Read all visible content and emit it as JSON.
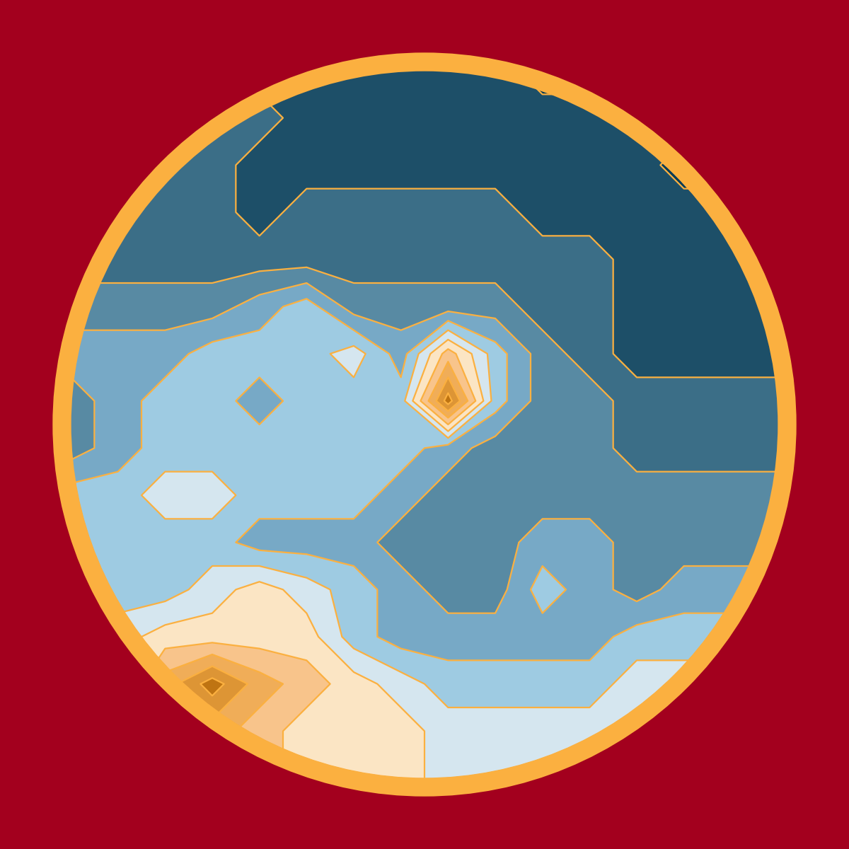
{
  "chart_data": {
    "type": "contour",
    "x": [
      0,
      1,
      2,
      3,
      4,
      5,
      6,
      7,
      8,
      9,
      10,
      11,
      12,
      13,
      14,
      15
    ],
    "y": [
      0,
      1,
      2,
      3,
      4,
      5,
      6,
      7,
      8,
      9,
      10,
      11,
      12,
      13,
      14,
      15
    ],
    "z": [
      [
        1,
        1,
        1,
        1,
        1,
        1,
        1,
        1,
        1,
        1,
        0,
        0,
        1,
        1,
        1,
        1
      ],
      [
        2,
        2,
        2,
        2,
        2,
        1,
        1,
        1,
        1,
        1,
        1,
        1,
        1,
        1,
        1,
        1
      ],
      [
        2,
        2,
        2,
        2,
        1,
        1,
        1,
        1,
        1,
        1,
        1,
        1,
        1,
        0,
        0,
        0
      ],
      [
        2,
        2,
        2,
        2,
        1,
        2,
        2,
        2,
        2,
        2,
        1,
        1,
        1,
        1,
        1,
        1
      ],
      [
        2,
        2,
        2,
        2,
        2,
        2,
        2,
        2,
        2,
        2,
        2,
        2,
        1,
        1,
        1,
        1
      ],
      [
        3,
        3,
        3,
        3,
        4,
        5,
        3,
        3,
        3,
        3,
        2,
        2,
        1,
        1,
        1,
        1
      ],
      [
        4,
        4,
        4,
        5,
        5,
        5,
        6,
        4,
        8,
        5,
        3,
        2,
        1,
        1,
        1,
        1
      ],
      [
        3,
        4,
        5,
        5,
        4,
        5,
        5,
        5,
        11,
        5,
        3,
        3,
        2,
        2,
        2,
        2
      ],
      [
        3,
        4,
        5,
        5,
        5,
        5,
        5,
        5,
        4,
        3,
        3,
        3,
        2,
        2,
        2,
        2
      ],
      [
        5,
        5,
        6,
        6,
        5,
        5,
        5,
        4,
        3,
        3,
        3,
        3,
        3,
        3,
        3,
        3
      ],
      [
        5,
        5,
        5,
        5,
        4,
        4,
        4,
        3,
        3,
        3,
        4,
        4,
        3,
        3,
        3,
        3
      ],
      [
        5,
        5,
        5,
        6,
        7,
        6,
        5,
        4,
        3,
        3,
        5,
        4,
        3,
        4,
        4,
        4
      ],
      [
        6,
        6,
        7,
        7,
        7,
        7,
        5,
        4,
        4,
        4,
        4,
        4,
        5,
        5,
        5,
        5
      ],
      [
        6,
        6,
        9,
        11,
        9,
        8,
        7,
        6,
        5,
        5,
        5,
        5,
        6,
        6,
        6,
        6
      ],
      [
        6,
        7,
        8,
        9,
        8,
        7,
        7,
        7,
        6,
        6,
        6,
        6,
        6,
        6,
        6,
        6
      ],
      [
        7,
        7,
        7,
        8,
        8,
        7,
        7,
        7,
        6,
        6,
        6,
        6,
        6,
        6,
        6,
        6
      ]
    ],
    "levels": [
      -0.5,
      0.5,
      1.5,
      2.5,
      3.5,
      4.5,
      5.5,
      6.5,
      7.5,
      8.5,
      9.5,
      10.5,
      11.5
    ],
    "colors": [
      "#003a57",
      "#1d4f68",
      "#3b6e87",
      "#588aa3",
      "#77a9c6",
      "#9ecbe2",
      "#d5e6ef",
      "#fbe5c4",
      "#f8c48b",
      "#f0ad58",
      "#dd9535",
      "#bf7412"
    ],
    "color": "#fbb040",
    "xlim": [
      0,
      15
    ],
    "ylim": [
      15,
      0
    ],
    "tick_labels": false
  }
}
